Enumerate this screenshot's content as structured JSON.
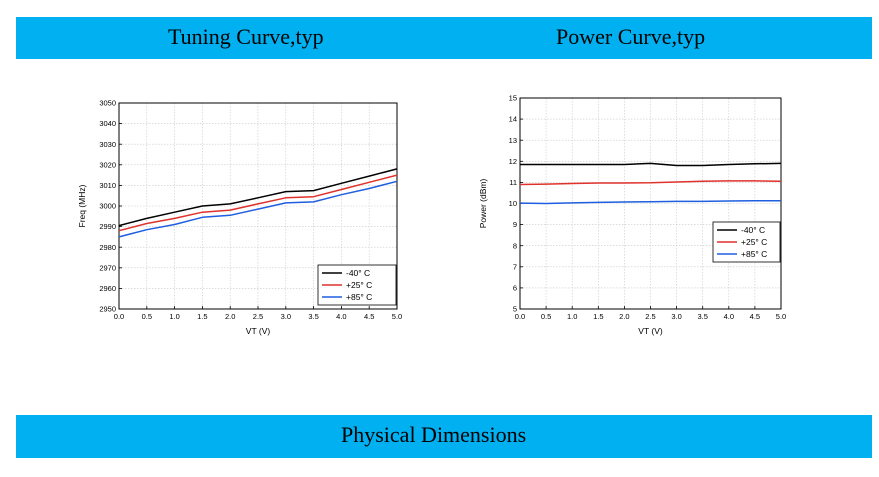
{
  "header": {
    "left_title": "Tuning Curve,typ",
    "right_title": "Power Curve,typ"
  },
  "footer": {
    "title": "Physical Dimensions"
  },
  "colors": {
    "banner": "#00b0f0",
    "series_-40": "#000000",
    "series_+25": "#e0312b",
    "series_+85": "#1f5ee0"
  },
  "chart_data": [
    {
      "type": "line",
      "title": "Tuning Curve,typ",
      "xlabel": "VT (V)",
      "ylabel": "Freq (MHz)",
      "xlim": [
        0,
        5
      ],
      "ylim": [
        2950,
        3050
      ],
      "xticks": [
        "0.0",
        "0.5",
        "1.0",
        "1.5",
        "2.0",
        "2.5",
        "3.0",
        "3.5",
        "4.0",
        "4.5",
        "5.0"
      ],
      "yticks": [
        "2950",
        "2960",
        "2970",
        "2980",
        "2990",
        "3000",
        "3010",
        "3020",
        "3030",
        "3040",
        "3050"
      ],
      "grid": true,
      "legend_position": "bottom-right",
      "x": [
        0,
        0.5,
        1,
        1.5,
        2,
        2.5,
        3,
        3.5,
        4,
        4.5,
        5
      ],
      "series": [
        {
          "name": "-40° C",
          "color": "#000000",
          "values": [
            2990.5,
            2994,
            2997,
            3000,
            3001,
            3004,
            3007,
            3007.5,
            3011,
            3014.5,
            3018
          ]
        },
        {
          "name": "+25° C",
          "color": "#e0312b",
          "values": [
            2988,
            2991.5,
            2994,
            2997,
            2998,
            3001,
            3004,
            3004.5,
            3008,
            3011.5,
            3015
          ]
        },
        {
          "name": "+85° C",
          "color": "#1f5ee0",
          "values": [
            2985,
            2988.5,
            2991,
            2994.5,
            2995.5,
            2998.5,
            3001.5,
            3002,
            3005.5,
            3008.5,
            3012
          ]
        }
      ]
    },
    {
      "type": "line",
      "title": "Power Curve,typ",
      "xlabel": "VT (V)",
      "ylabel": "Power (dBm)",
      "xlim": [
        0,
        5
      ],
      "ylim": [
        5,
        15
      ],
      "xticks": [
        "0.0",
        "0.5",
        "1.0",
        "1.5",
        "2.0",
        "2.5",
        "3.0",
        "3.5",
        "4.0",
        "4.5",
        "5.0"
      ],
      "yticks": [
        "5",
        "6",
        "7",
        "8",
        "9",
        "10",
        "11",
        "12",
        "13",
        "14",
        "15"
      ],
      "grid": true,
      "legend_position": "center-right",
      "x": [
        0,
        0.5,
        1,
        1.5,
        2,
        2.5,
        3,
        3.5,
        4,
        4.5,
        5
      ],
      "series": [
        {
          "name": "-40° C",
          "color": "#000000",
          "values": [
            11.85,
            11.85,
            11.85,
            11.85,
            11.85,
            11.9,
            11.8,
            11.8,
            11.85,
            11.88,
            11.9
          ]
        },
        {
          "name": "+25° C",
          "color": "#e0312b",
          "values": [
            10.9,
            10.92,
            10.95,
            10.97,
            10.97,
            10.98,
            11.02,
            11.05,
            11.07,
            11.07,
            11.05
          ]
        },
        {
          "name": "+85° C",
          "color": "#1f5ee0",
          "values": [
            10.02,
            10.0,
            10.03,
            10.05,
            10.07,
            10.08,
            10.1,
            10.1,
            10.12,
            10.13,
            10.13
          ]
        }
      ]
    }
  ]
}
